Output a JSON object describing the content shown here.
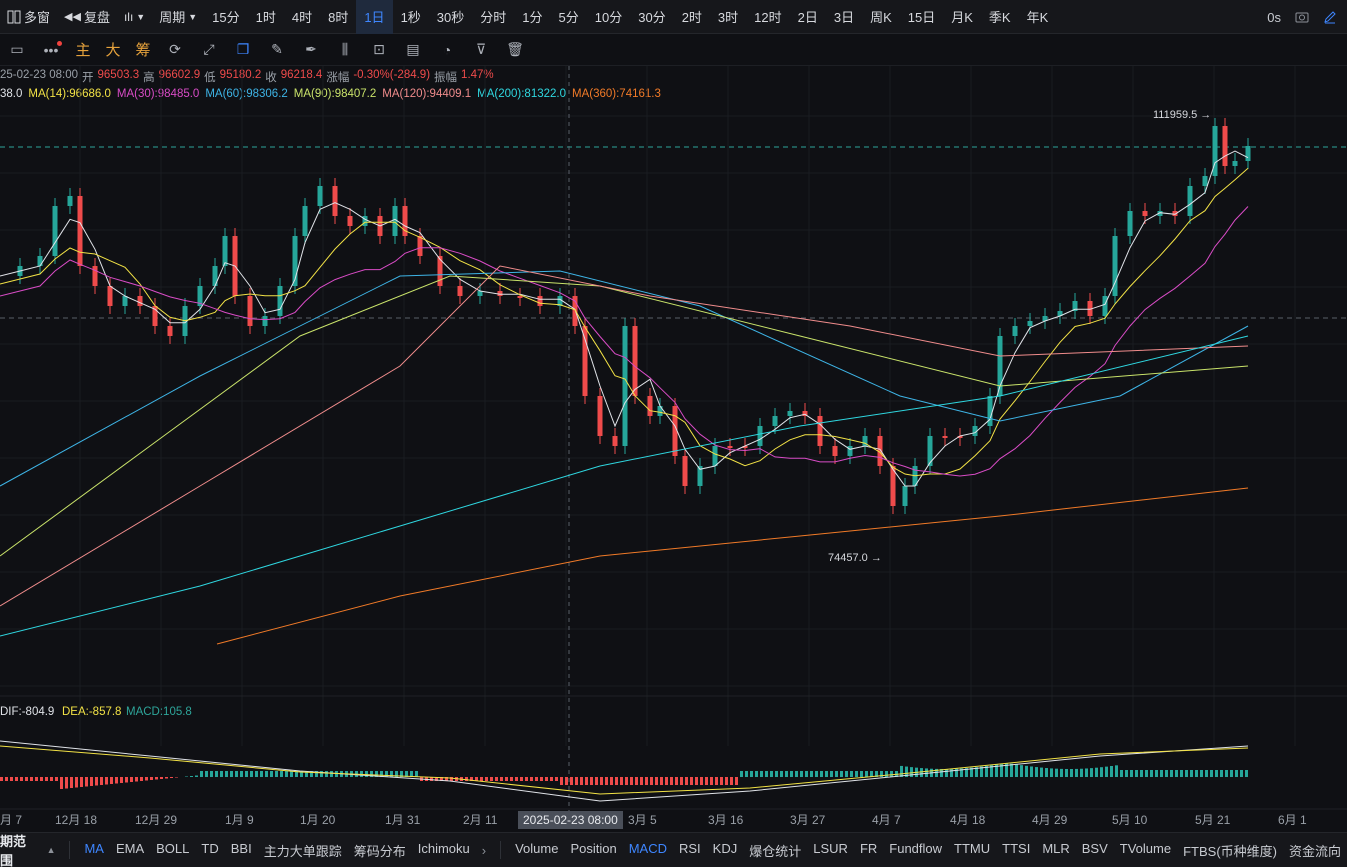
{
  "topbar": {
    "multi_window": "多窗",
    "replay": "复盘",
    "period_label": "周期",
    "periods": [
      "15分",
      "1时",
      "4时",
      "8时",
      "1日",
      "1秒",
      "30秒",
      "分时",
      "1分",
      "5分",
      "10分",
      "30分",
      "2时",
      "3时",
      "12时",
      "2日",
      "3日",
      "周K",
      "15日",
      "月K",
      "季K",
      "年K"
    ],
    "active_period": "1日",
    "latency": "0s"
  },
  "drawbar": {
    "main": "主",
    "big": "大",
    "chips": "筹"
  },
  "info": {
    "date": "25-02-23 08:00",
    "open_label": "开",
    "open": "96503.3",
    "high_label": "高",
    "high": "96602.9",
    "low_label": "低",
    "low": "95180.2",
    "close_label": "收",
    "close": "96218.4",
    "change_label": "涨幅",
    "change": "-0.30%(-284.9)",
    "amp_label": "振幅",
    "amp": "1.47%"
  },
  "ma_legend": [
    {
      "text": "38.0",
      "color": "#e0e3e8"
    },
    {
      "text": "MA(14):96686.0",
      "color": "#f2e246"
    },
    {
      "text": "MA(30):98485.0",
      "color": "#d94cc6"
    },
    {
      "text": "MA(60):98306.2",
      "color": "#3eb4e6"
    },
    {
      "text": "MA(90):98407.2",
      "color": "#c9e36a"
    },
    {
      "text": "MA(120):94409.1",
      "color": "#f08c8c"
    },
    {
      "text": "MA(200):81322.0",
      "color": "#2fd7e0"
    },
    {
      "text": "MA(360):74161.3",
      "color": "#f07a28"
    }
  ],
  "chart_annotations": {
    "high_label": "111959.5",
    "low_label": "74457.0"
  },
  "macd_legend": {
    "dif": "DIF:-804.9",
    "dea": "DEA:-857.8",
    "macd": "MACD:105.8"
  },
  "x_axis": [
    "月 7",
    "12月 18",
    "12月 29",
    "1月 9",
    "1月 20",
    "1月 31",
    "2月 11",
    "3月 5",
    "3月 16",
    "3月 27",
    "4月 7",
    "4月 18",
    "4月 29",
    "5月 10",
    "5月 21",
    "6月 1"
  ],
  "crosshair_date": "2025-02-23 08:00",
  "bottombar": {
    "range_label": "期范围",
    "indicators_main": [
      "MA",
      "EMA",
      "BOLL",
      "TD",
      "BBI",
      "主力大单跟踪",
      "筹码分布",
      "Ichimoku"
    ],
    "indicators_sub": [
      "Volume",
      "Position",
      "MACD",
      "RSI",
      "KDJ",
      "爆仓统计",
      "LSUR",
      "FR",
      "Fundflow",
      "TTMU",
      "TTSI",
      "MLR",
      "BSV",
      "TVolume",
      "FTBS(币种维度)",
      "资金流向"
    ],
    "active_main": "MA",
    "active_sub": "MACD"
  },
  "colors": {
    "up": "#26a69a",
    "down": "#ef4b4b",
    "accent": "#3e86ff"
  }
}
